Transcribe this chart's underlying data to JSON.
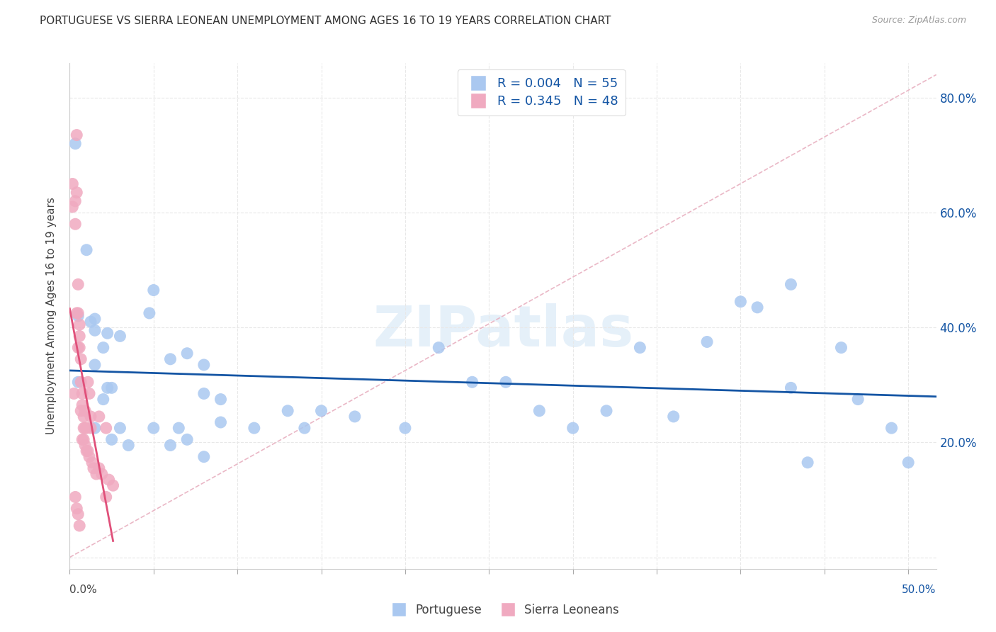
{
  "title": "PORTUGUESE VS SIERRA LEONEAN UNEMPLOYMENT AMONG AGES 16 TO 19 YEARS CORRELATION CHART",
  "source": "Source: ZipAtlas.com",
  "ylabel": "Unemployment Among Ages 16 to 19 years",
  "right_yticklabels": [
    "20.0%",
    "40.0%",
    "60.0%",
    "80.0%"
  ],
  "right_ytick_vals": [
    0.2,
    0.4,
    0.6,
    0.8
  ],
  "legend_portuguese": {
    "R": "0.004",
    "N": "55"
  },
  "legend_sierra": {
    "R": "0.345",
    "N": "48"
  },
  "portuguese_color": "#aac8f0",
  "sierra_color": "#f0aac0",
  "trend_portuguese_color": "#1455a4",
  "trend_sierra_color": "#e0507a",
  "trend_ref_color": "#e8b0c0",
  "portuguese_dots": [
    [
      0.004,
      0.72
    ],
    [
      0.012,
      0.535
    ],
    [
      0.006,
      0.42
    ],
    [
      0.018,
      0.415
    ],
    [
      0.015,
      0.41
    ],
    [
      0.018,
      0.395
    ],
    [
      0.027,
      0.39
    ],
    [
      0.024,
      0.365
    ],
    [
      0.036,
      0.385
    ],
    [
      0.018,
      0.335
    ],
    [
      0.006,
      0.305
    ],
    [
      0.027,
      0.295
    ],
    [
      0.03,
      0.295
    ],
    [
      0.024,
      0.275
    ],
    [
      0.06,
      0.465
    ],
    [
      0.057,
      0.425
    ],
    [
      0.084,
      0.355
    ],
    [
      0.072,
      0.345
    ],
    [
      0.096,
      0.335
    ],
    [
      0.096,
      0.285
    ],
    [
      0.108,
      0.275
    ],
    [
      0.108,
      0.235
    ],
    [
      0.06,
      0.225
    ],
    [
      0.078,
      0.225
    ],
    [
      0.036,
      0.225
    ],
    [
      0.132,
      0.225
    ],
    [
      0.156,
      0.255
    ],
    [
      0.18,
      0.255
    ],
    [
      0.168,
      0.225
    ],
    [
      0.24,
      0.225
    ],
    [
      0.204,
      0.245
    ],
    [
      0.264,
      0.365
    ],
    [
      0.288,
      0.305
    ],
    [
      0.312,
      0.305
    ],
    [
      0.336,
      0.255
    ],
    [
      0.36,
      0.225
    ],
    [
      0.384,
      0.255
    ],
    [
      0.408,
      0.365
    ],
    [
      0.432,
      0.245
    ],
    [
      0.456,
      0.375
    ],
    [
      0.48,
      0.445
    ],
    [
      0.492,
      0.435
    ],
    [
      0.516,
      0.295
    ],
    [
      0.528,
      0.165
    ],
    [
      0.552,
      0.365
    ],
    [
      0.564,
      0.275
    ],
    [
      0.588,
      0.225
    ],
    [
      0.6,
      0.165
    ],
    [
      0.018,
      0.225
    ],
    [
      0.03,
      0.205
    ],
    [
      0.042,
      0.195
    ],
    [
      0.072,
      0.195
    ],
    [
      0.084,
      0.205
    ],
    [
      0.096,
      0.175
    ],
    [
      0.516,
      0.475
    ]
  ],
  "sierra_dots": [
    [
      0.002,
      0.65
    ],
    [
      0.004,
      0.62
    ],
    [
      0.002,
      0.61
    ],
    [
      0.004,
      0.58
    ],
    [
      0.005,
      0.735
    ],
    [
      0.005,
      0.635
    ],
    [
      0.006,
      0.475
    ],
    [
      0.006,
      0.425
    ],
    [
      0.005,
      0.425
    ],
    [
      0.007,
      0.405
    ],
    [
      0.007,
      0.385
    ],
    [
      0.006,
      0.365
    ],
    [
      0.007,
      0.365
    ],
    [
      0.008,
      0.345
    ],
    [
      0.008,
      0.305
    ],
    [
      0.009,
      0.285
    ],
    [
      0.009,
      0.265
    ],
    [
      0.008,
      0.255
    ],
    [
      0.01,
      0.245
    ],
    [
      0.011,
      0.255
    ],
    [
      0.01,
      0.225
    ],
    [
      0.011,
      0.225
    ],
    [
      0.012,
      0.225
    ],
    [
      0.009,
      0.205
    ],
    [
      0.01,
      0.205
    ],
    [
      0.011,
      0.195
    ],
    [
      0.012,
      0.185
    ],
    [
      0.013,
      0.185
    ],
    [
      0.014,
      0.175
    ],
    [
      0.015,
      0.225
    ],
    [
      0.016,
      0.165
    ],
    [
      0.017,
      0.155
    ],
    [
      0.019,
      0.145
    ],
    [
      0.021,
      0.155
    ],
    [
      0.015,
      0.245
    ],
    [
      0.021,
      0.245
    ],
    [
      0.023,
      0.145
    ],
    [
      0.026,
      0.105
    ],
    [
      0.028,
      0.135
    ],
    [
      0.031,
      0.125
    ],
    [
      0.004,
      0.105
    ],
    [
      0.005,
      0.085
    ],
    [
      0.006,
      0.075
    ],
    [
      0.007,
      0.055
    ],
    [
      0.013,
      0.305
    ],
    [
      0.014,
      0.285
    ],
    [
      0.026,
      0.225
    ],
    [
      0.003,
      0.285
    ]
  ],
  "xlim": [
    0.0,
    0.62
  ],
  "ylim": [
    -0.02,
    0.86
  ],
  "background_color": "#ffffff",
  "grid_color": "#e8e8e8"
}
